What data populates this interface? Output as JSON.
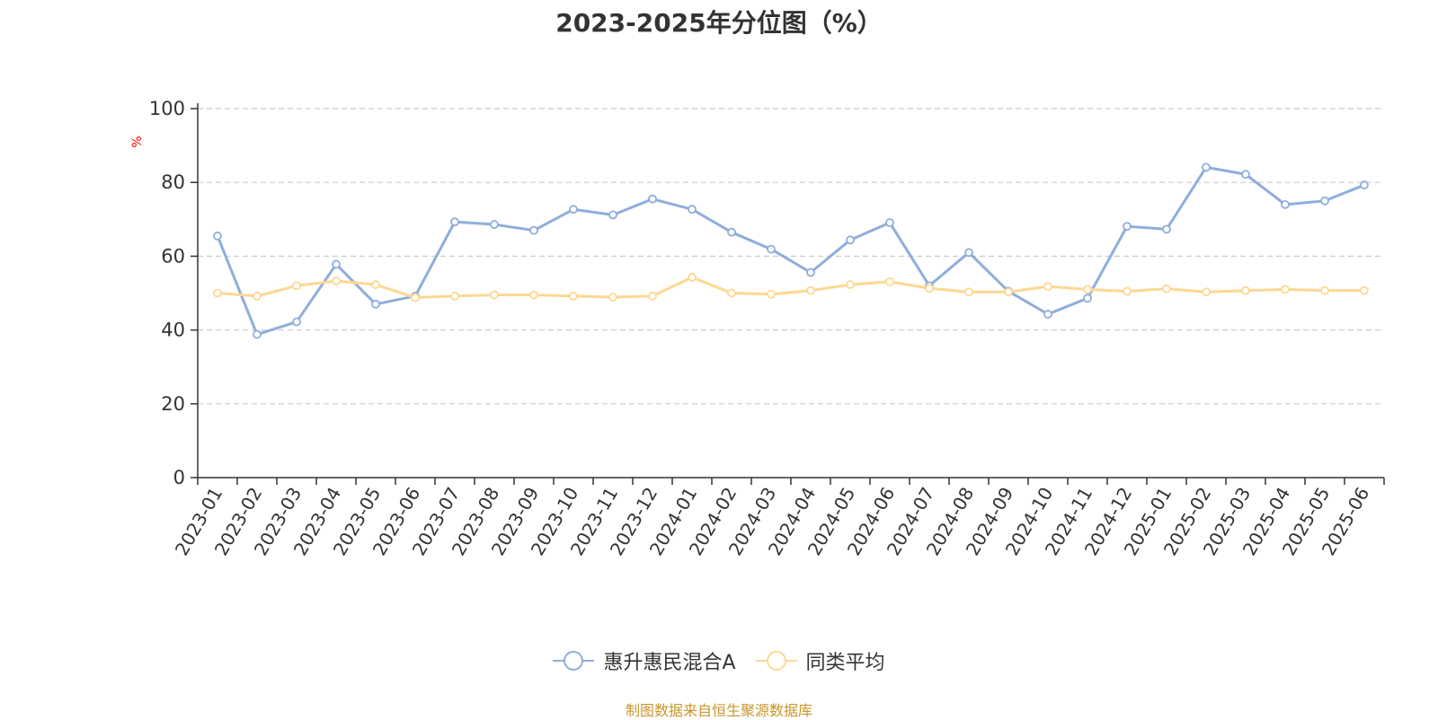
{
  "chart_data": {
    "type": "line",
    "title": "2023-2025年分位图（%）",
    "ylabel": "%",
    "xlabel": "",
    "ylim": [
      0,
      100
    ],
    "yticks": [
      0,
      20,
      40,
      60,
      80,
      100
    ],
    "grid": true,
    "legend_position": "bottom",
    "categories": [
      "2023-01",
      "2023-02",
      "2023-03",
      "2023-04",
      "2023-05",
      "2023-06",
      "2023-07",
      "2023-08",
      "2023-09",
      "2023-10",
      "2023-11",
      "2023-12",
      "2024-01",
      "2024-02",
      "2024-03",
      "2024-04",
      "2024-05",
      "2024-06",
      "2024-07",
      "2024-08",
      "2024-09",
      "2024-10",
      "2024-11",
      "2024-12",
      "2025-01",
      "2025-02",
      "2025-03",
      "2025-04",
      "2025-05",
      "2025-06"
    ],
    "series": [
      {
        "name": "惠升惠民混合A",
        "color": "#8eaedb",
        "values": [
          65.5,
          38.8,
          42.2,
          57.8,
          47.0,
          49.2,
          69.3,
          68.6,
          67.0,
          72.7,
          71.2,
          75.5,
          72.7,
          66.5,
          61.9,
          55.6,
          64.4,
          69.1,
          52.0,
          61.0,
          50.5,
          44.3,
          48.6,
          68.1,
          67.3,
          84.1,
          82.2,
          74.0,
          75.0,
          79.3
        ]
      },
      {
        "name": "同类平均",
        "color": "#fdd893",
        "values": [
          50.0,
          49.2,
          52.0,
          53.3,
          52.3,
          48.8,
          49.2,
          49.5,
          49.5,
          49.2,
          48.9,
          49.2,
          54.3,
          50.0,
          49.7,
          50.7,
          52.3,
          53.1,
          51.3,
          50.3,
          50.3,
          51.8,
          51.0,
          50.5,
          51.2,
          50.3,
          50.7,
          51.0,
          50.7,
          50.7
        ]
      }
    ]
  },
  "footer": {
    "source_text": "制图数据来自恒生聚源数据库"
  },
  "colors": {
    "title": "#333333",
    "axis": "#333333",
    "grid": "#cccccc",
    "ylabel": "#ff0000",
    "source": "#c8952a"
  }
}
